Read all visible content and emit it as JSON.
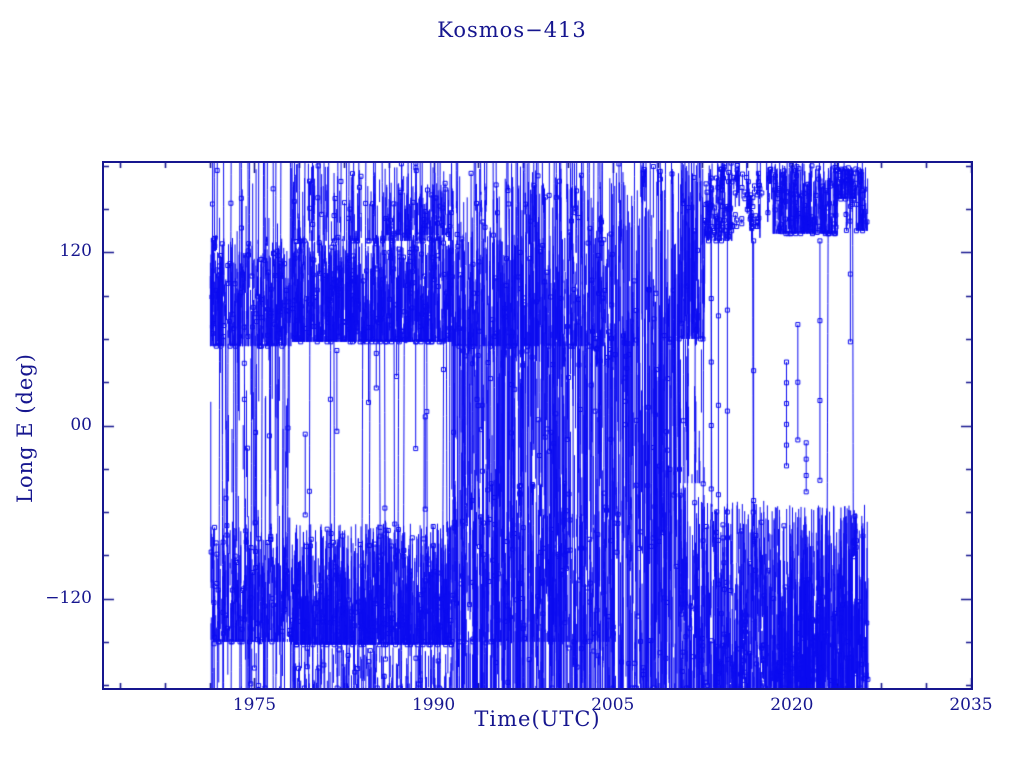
{
  "chart_data": {
    "type": "scatter",
    "title": "Kosmos−413",
    "xlabel": "Time(UTC)",
    "ylabel": "Long E (deg)",
    "xlim": [
      1962.4,
      2035.0
    ],
    "ylim": [
      -182,
      182
    ],
    "grid": false,
    "legend": "none",
    "axis_color": "#16168f",
    "series_color": "#0c0cf0",
    "background_color": "#ffffff",
    "xticks": {
      "labels": [
        {
          "v": 1975,
          "label": "1975"
        },
        {
          "v": 1990,
          "label": "1990"
        },
        {
          "v": 2005,
          "label": "2005"
        },
        {
          "v": 2020,
          "label": "2020"
        },
        {
          "v": 2035,
          "label": "2035"
        }
      ],
      "minor_step": 3.75,
      "minor_start": 1963.75
    },
    "yticks": {
      "labels": [
        {
          "v": 120,
          "label": "120"
        },
        {
          "v": 0,
          "label": "00"
        },
        {
          "v": -120,
          "label": "−120"
        }
      ],
      "minor_step": 30
    },
    "marker": "open-square",
    "data_span": {
      "start": 1971.3,
      "end": 2026.38
    },
    "description": "Geostationary-belt longitude history of Kosmos-413: dense drifting coverage of all longitudes 1971-2012 with concentration bands near +60..+130 deg and -150..-65 deg, sparse mid-longitudes 1978-1991, near-total coverage 1991-2012, then libration with dense top band +130..+180 and dense bottom block -180..-55 through 2026.",
    "sim": {
      "seed": 20413,
      "dt": 0.008,
      "start_lon": 95,
      "vel_range": [
        15,
        40
      ],
      "phases": [
        {
          "from": 1971.3,
          "to": 1978.2,
          "top": [
            55,
            132
          ],
          "bottom": [
            -152,
            -68
          ],
          "stay": [
            0.05,
            0.28
          ],
          "wander": 9,
          "wrapBias": 0.55,
          "mkS": 0.05,
          "mkM": 0.1
        },
        {
          "from": 1978.2,
          "to": 1991.5,
          "top": [
            57,
            132
          ],
          "bottom": [
            -152,
            -66
          ],
          "stay": [
            0.1,
            0.45
          ],
          "wander": 10,
          "wrapBias": 0.73,
          "mkS": 0.05,
          "mkM": 0.1
        },
        {
          "from": 1991.5,
          "to": 2005.3,
          "top": [
            40,
            168
          ],
          "bottom": [
            -168,
            -40
          ],
          "stay": [
            0.04,
            0.18
          ],
          "wander": 15,
          "wrapBias": 0.5,
          "mkS": 0.05,
          "mkM": 0.1
        },
        {
          "from": 2005.3,
          "to": 2012.7,
          "top": [
            55,
            178
          ],
          "bottom": [
            -178,
            -45
          ],
          "stay": [
            0.04,
            0.2
          ],
          "wander": 15,
          "wrapBias": 0.5,
          "mkS": 0.05,
          "mkM": 0.1
        },
        {
          "from": 2012.7,
          "to": 2018.4,
          "top": [
            128,
            178
          ],
          "bottom": [
            -178,
            -52
          ],
          "stay": [
            0.18,
            0.6
          ],
          "wander": 12,
          "wrapBias": 0.85,
          "mkS": 0.09,
          "mkM": 0.12
        },
        {
          "from": 2018.4,
          "to": 2026.38,
          "top": [
            134,
            178
          ],
          "bottom": [
            -178,
            -56
          ],
          "stay": [
            0.22,
            0.75
          ],
          "wander": 13,
          "wrapBias": 0.9,
          "mkS": 0.09,
          "mkM": 0.12
        }
      ],
      "regions": [
        [
          1971.3,
          1978.2,
          -182,
          182,
          0.5,
          20,
          120,
          0.06
        ],
        [
          1971.3,
          1978.2,
          55,
          130,
          1.5,
          10,
          60,
          0.1
        ],
        [
          1971.3,
          1978.2,
          -150,
          -70,
          1.5,
          10,
          60,
          0.1
        ],
        [
          1978.2,
          1991.5,
          58,
          132,
          2.2,
          15,
          70,
          0.08
        ],
        [
          1978.2,
          1991.5,
          -152,
          -68,
          2.2,
          15,
          80,
          0.08
        ],
        [
          1978.2,
          1991.5,
          128,
          182,
          0.5,
          10,
          55,
          0.1
        ],
        [
          1978.2,
          1991.5,
          -182,
          -148,
          0.5,
          8,
          35,
          0.1
        ],
        [
          1986.0,
          1991.5,
          132,
          168,
          0.8,
          8,
          40,
          0.15
        ],
        [
          1991.5,
          2005.3,
          -182,
          182,
          1.6,
          30,
          200,
          0.05
        ],
        [
          1991.5,
          2005.3,
          55,
          135,
          0.9,
          12,
          60,
          0.08
        ],
        [
          1991.5,
          2005.3,
          -150,
          -60,
          0.9,
          12,
          60,
          0.08
        ],
        [
          2005.3,
          2010.6,
          -182,
          182,
          1.8,
          30,
          220,
          0.05
        ],
        [
          2010.6,
          2012.7,
          60,
          182,
          1.8,
          20,
          90,
          0.06
        ],
        [
          2010.6,
          2012.7,
          -182,
          -40,
          1.8,
          20,
          90,
          0.06
        ],
        [
          2010.6,
          2012.7,
          -40,
          60,
          0.5,
          15,
          70,
          0.08
        ],
        [
          2012.8,
          2015.0,
          128,
          182,
          1.6,
          6,
          30,
          0.35
        ],
        [
          2015.0,
          2018.4,
          138,
          182,
          0.35,
          3,
          12,
          0.8
        ],
        [
          2012.8,
          2018.4,
          -182,
          -52,
          1.9,
          15,
          90,
          0.07
        ],
        [
          2018.4,
          2026.38,
          -182,
          -55,
          2.6,
          20,
          110,
          0.06
        ],
        [
          2018.4,
          2023.85,
          133,
          182,
          2.0,
          8,
          40,
          0.15
        ],
        [
          2023.85,
          2025.4,
          157,
          182,
          1.6,
          6,
          22,
          0.25
        ],
        [
          2025.4,
          2026.38,
          135,
          182,
          1.8,
          8,
          40,
          0.15
        ]
      ],
      "events": [
        [
          1979.25,
          -62,
          -6,
          2
        ],
        [
          1981.9,
          52,
          -4,
          2
        ],
        [
          1983.0,
          150,
          95,
          2
        ],
        [
          1984.55,
          68,
          16,
          2
        ],
        [
          1985.2,
          74,
          26,
          3
        ],
        [
          1986.9,
          60,
          34,
          2
        ],
        [
          1988.5,
          58,
          -16,
          2
        ],
        [
          1989.3,
          -58,
          6,
          2
        ],
        [
          2013.25,
          132,
          -44,
          5
        ],
        [
          2013.85,
          138,
          -172,
          6
        ],
        [
          2014.6,
          150,
          -60,
          4
        ],
        [
          2016.8,
          128,
          -52,
          3
        ],
        [
          2019.55,
          44,
          -28,
          6
        ],
        [
          2020.5,
          70,
          -10,
          3
        ],
        [
          2021.2,
          -12,
          -46,
          4
        ],
        [
          2022.35,
          128,
          -38,
          4
        ],
        [
          2024.9,
          152,
          58,
          3
        ]
      ]
    }
  }
}
